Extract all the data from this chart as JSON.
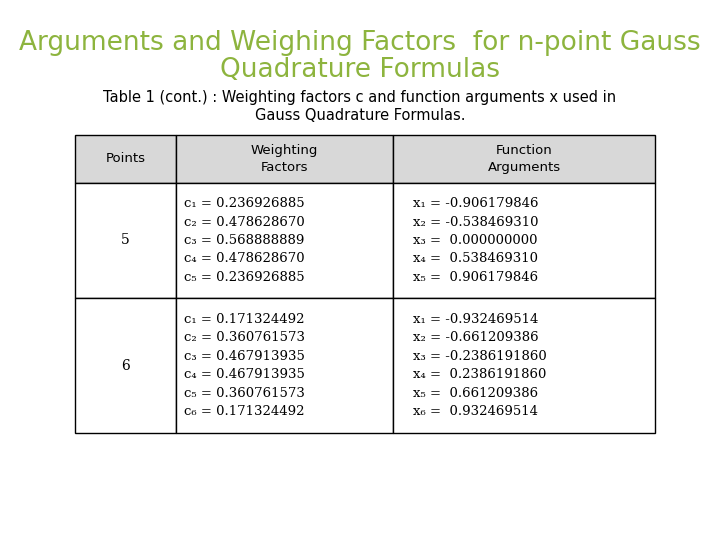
{
  "title_line1": "Arguments and Weighing Factors  for n-point Gauss",
  "title_line2": "Quadrature Formulas",
  "title_color": "#8db43e",
  "subtitle_line1": "Table 1 (cont.) : Weighting factors c and function arguments x used in",
  "subtitle_line2": "Gauss Quadrature Formulas.",
  "bg_color": "#ffffff",
  "header": [
    "Points",
    "Weighting\nFactors",
    "Function\nArguments"
  ],
  "row5_point": "5",
  "row5_weights": [
    "c₁ = 0.236926885",
    "c₂ = 0.478628670",
    "c₃ = 0.568888889",
    "c₄ = 0.478628670",
    "c₅ = 0.236926885"
  ],
  "row5_args": [
    "x₁ = -0.906179846",
    "x₂ = -0.538469310",
    "x₃ =  0.000000000",
    "x₄ =  0.538469310",
    "x₅ =  0.906179846"
  ],
  "row6_point": "6",
  "row6_weights": [
    "c₁ = 0.171324492",
    "c₂ = 0.360761573",
    "c₃ = 0.467913935",
    "c₄ = 0.467913935",
    "c₅ = 0.360761573",
    "c₆ = 0.171324492"
  ],
  "row6_args": [
    "x₁ = -0.932469514",
    "x₂ = -0.661209386",
    "x₃ = -0.2386191860",
    "x₄ =  0.2386191860",
    "x₅ =  0.661209386",
    "x₆ =  0.932469514"
  ],
  "table_border_color": "#000000",
  "header_bg": "#d8d8d8",
  "cell_bg": "#ffffff",
  "title_fontsize": 19,
  "subtitle_fontsize": 10.5,
  "table_fontsize": 9.5
}
